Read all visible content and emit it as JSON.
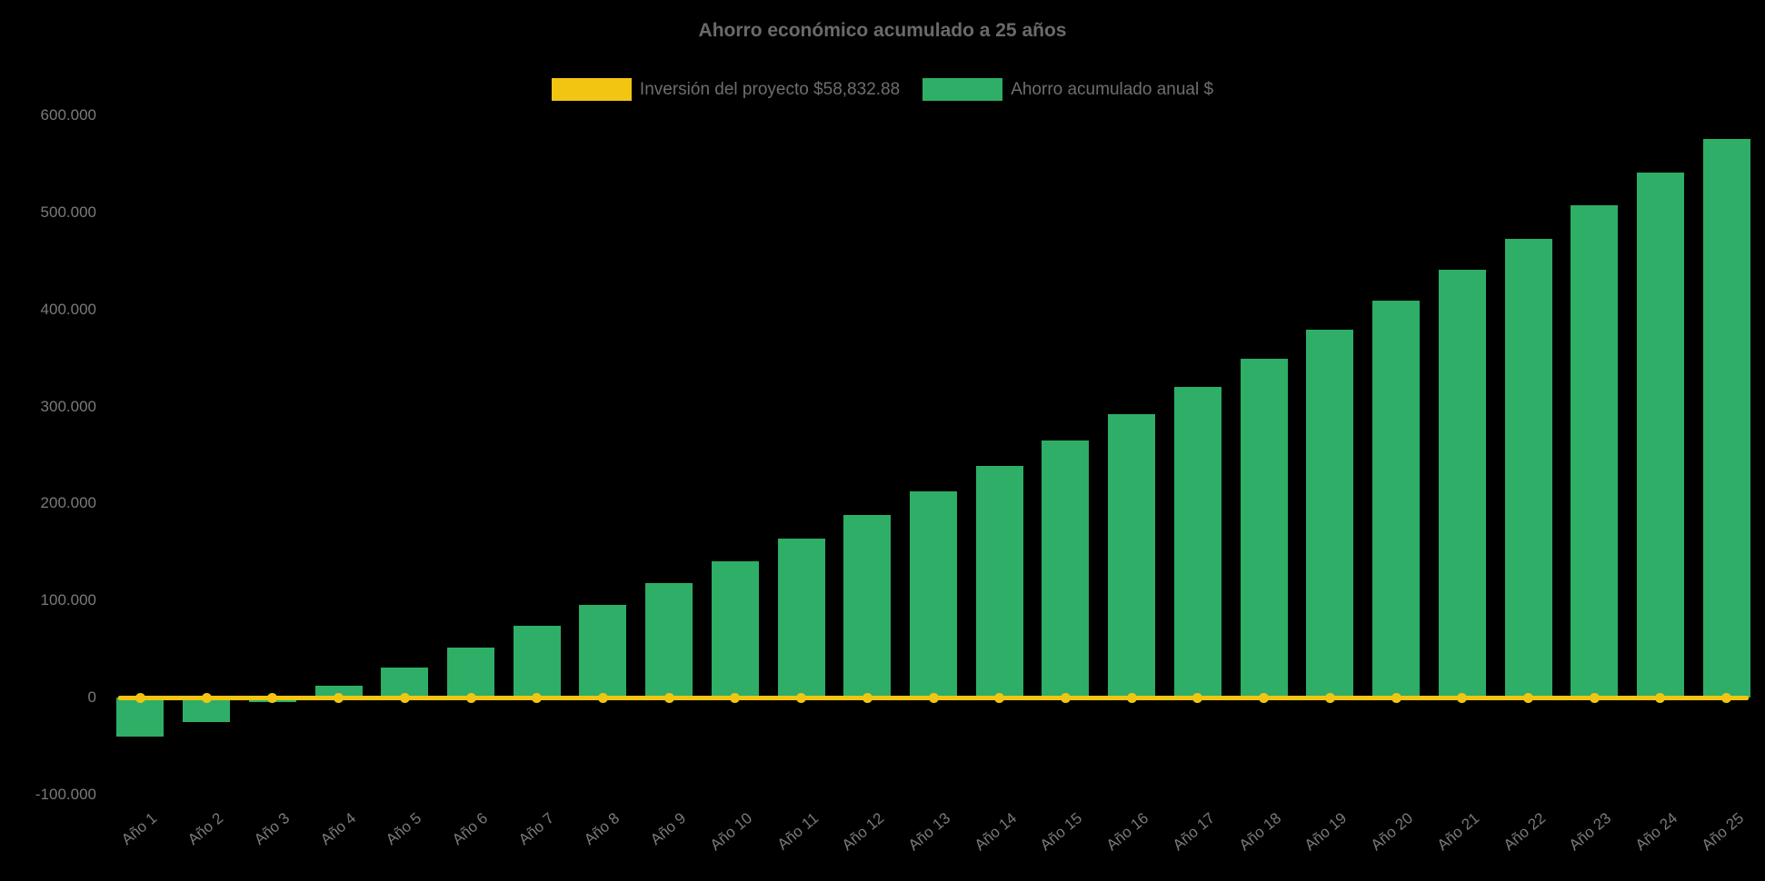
{
  "title": "Ahorro económico acumulado a 25 años",
  "legend": {
    "items": [
      {
        "label": "Inversión del proyecto $58,832.88",
        "color": "#F2C512",
        "series_type": "line"
      },
      {
        "label": "Ahorro acumulado anual $",
        "color": "#2EAE66",
        "series_type": "bar"
      }
    ]
  },
  "colors": {
    "background": "#000000",
    "bar": "#2EAE66",
    "line": "#F2C512",
    "tick_text": "#7a7a7a",
    "title_text": "#6a6a6a"
  },
  "chart_data": {
    "type": "bar",
    "title": "Ahorro económico acumulado a 25 años",
    "categories": [
      "Año 1",
      "Año 2",
      "Año 3",
      "Año 4",
      "Año 5",
      "Año 6",
      "Año 7",
      "Año 8",
      "Año 9",
      "Año 10",
      "Año 11",
      "Año 12",
      "Año 13",
      "Año 14",
      "Año 15",
      "Año 16",
      "Año 17",
      "Año 18",
      "Año 19",
      "Año 20",
      "Año 21",
      "Año 22",
      "Año 23",
      "Año 24",
      "Año 25"
    ],
    "series": [
      {
        "name": "Ahorro acumulado anual $",
        "type": "bar",
        "color": "#2EAE66",
        "values": [
          -40000,
          -25000,
          -5000,
          12000,
          31000,
          52000,
          74000,
          96000,
          118000,
          141000,
          164000,
          188000,
          213000,
          239000,
          265000,
          292000,
          320000,
          349000,
          379000,
          409000,
          441000,
          473000,
          507000,
          541000,
          576000
        ]
      },
      {
        "name": "Inversión del proyecto $58,832.88",
        "type": "line",
        "color": "#F2C512",
        "values": [
          0,
          0,
          0,
          0,
          0,
          0,
          0,
          0,
          0,
          0,
          0,
          0,
          0,
          0,
          0,
          0,
          0,
          0,
          0,
          0,
          0,
          0,
          0,
          0,
          0
        ]
      }
    ],
    "xlabel": "",
    "ylabel": "",
    "ylim": [
      -100000,
      600000
    ],
    "yticks": [
      -100000,
      0,
      100000,
      200000,
      300000,
      400000,
      500000,
      600000
    ],
    "ytick_labels": [
      "-100.000",
      "0",
      "100.000",
      "200.000",
      "300.000",
      "400.000",
      "500.000",
      "600.000"
    ],
    "x_label_rotation": -40,
    "grid": false,
    "legend_position": "top",
    "background": "#000000"
  }
}
